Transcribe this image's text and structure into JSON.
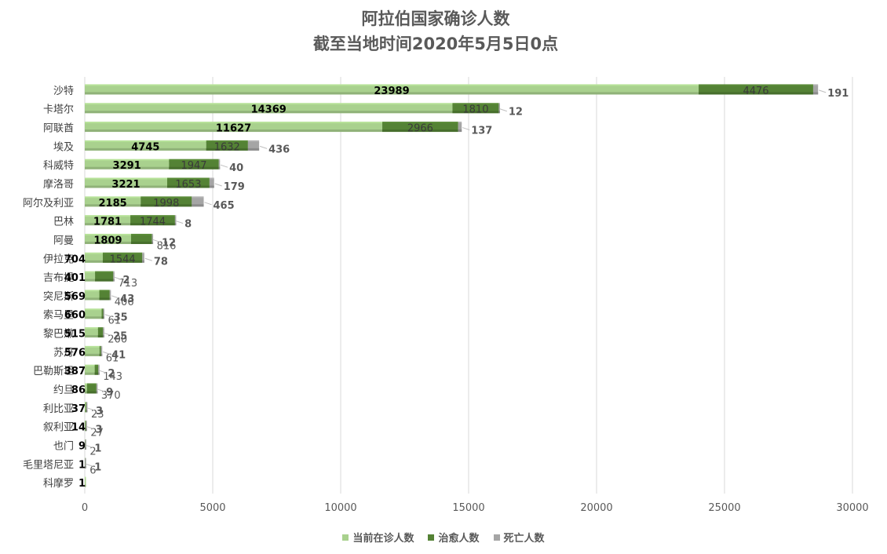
{
  "chart_data": {
    "type": "bar",
    "orientation": "horizontal",
    "stacked": true,
    "title": "阿拉伯国家确诊人数",
    "subtitle": "截至当地时间2020年5月5日0点",
    "categories": [
      "沙特",
      "卡塔尔",
      "阿联酋",
      "埃及",
      "科威特",
      "摩洛哥",
      "阿尔及利亚",
      "巴林",
      "阿曼",
      "伊拉克",
      "吉布提",
      "突尼斯",
      "索马里",
      "黎巴嫩",
      "苏丹",
      "巴勒斯坦",
      "约旦",
      "利比亚",
      "叙利亚",
      "也门",
      "毛里塔尼亚",
      "科摩罗"
    ],
    "series": [
      {
        "name": "当前在诊人数",
        "color": "#a9d18e",
        "values": [
          23989,
          14369,
          11627,
          4745,
          3291,
          3221,
          2185,
          1781,
          1809,
          704,
          401,
          569,
          660,
          515,
          576,
          387,
          86,
          37,
          14,
          9,
          1,
          1
        ]
      },
      {
        "name": "治愈人数",
        "color": "#548235",
        "values": [
          4476,
          1810,
          2966,
          1632,
          1947,
          1653,
          1998,
          1744,
          816,
          1544,
          713,
          406,
          61,
          200,
          61,
          143,
          370,
          23,
          27,
          2,
          6,
          0
        ]
      },
      {
        "name": "死亡人数",
        "color": "#a5a5a5",
        "values": [
          191,
          12,
          137,
          436,
          40,
          179,
          465,
          8,
          12,
          78,
          2,
          43,
          35,
          25,
          41,
          2,
          9,
          3,
          3,
          1,
          1,
          0
        ]
      }
    ],
    "xlim": [
      0,
      30000
    ],
    "xticks": [
      0,
      5000,
      10000,
      15000,
      20000,
      25000,
      30000
    ],
    "grid": true,
    "legend_position": "bottom"
  }
}
